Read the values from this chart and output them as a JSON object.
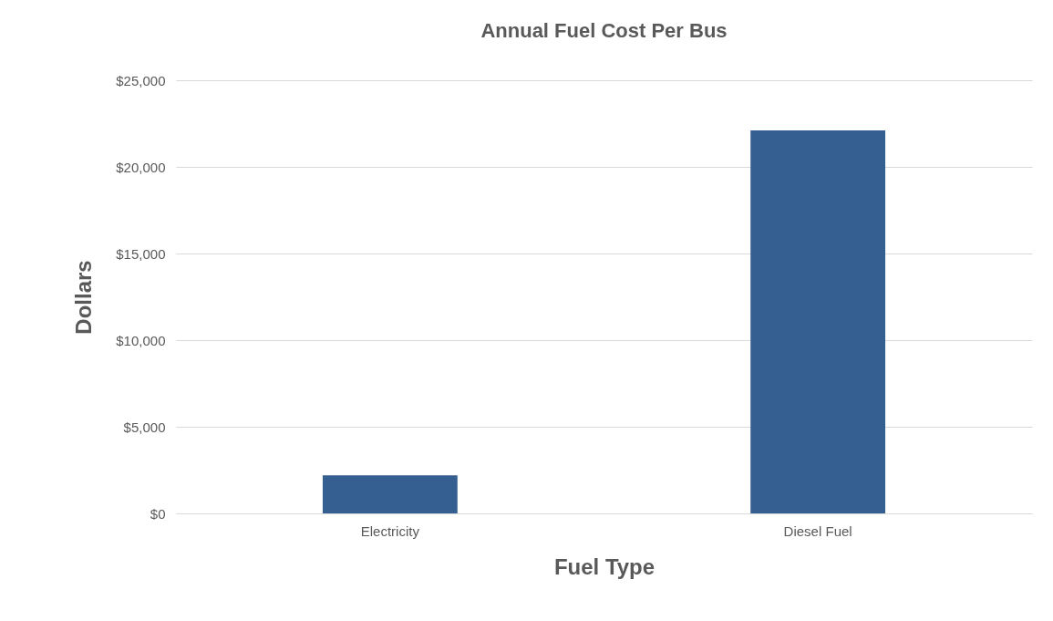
{
  "chart_data": {
    "type": "bar",
    "title": "Annual Fuel Cost Per Bus",
    "xlabel": "Fuel Type",
    "ylabel": "Dollars",
    "categories": [
      "Electricity",
      "Diesel Fuel"
    ],
    "values": [
      2200,
      22100
    ],
    "color": "#365f91",
    "ylim": [
      0,
      25000
    ],
    "yticks": [
      {
        "value": 0,
        "label": "$0"
      },
      {
        "value": 5000,
        "label": "$5,000"
      },
      {
        "value": 10000,
        "label": "$10,000"
      },
      {
        "value": 15000,
        "label": "$15,000"
      },
      {
        "value": 20000,
        "label": "$20,000"
      },
      {
        "value": 25000,
        "label": "$25,000"
      }
    ],
    "grid": "y"
  }
}
